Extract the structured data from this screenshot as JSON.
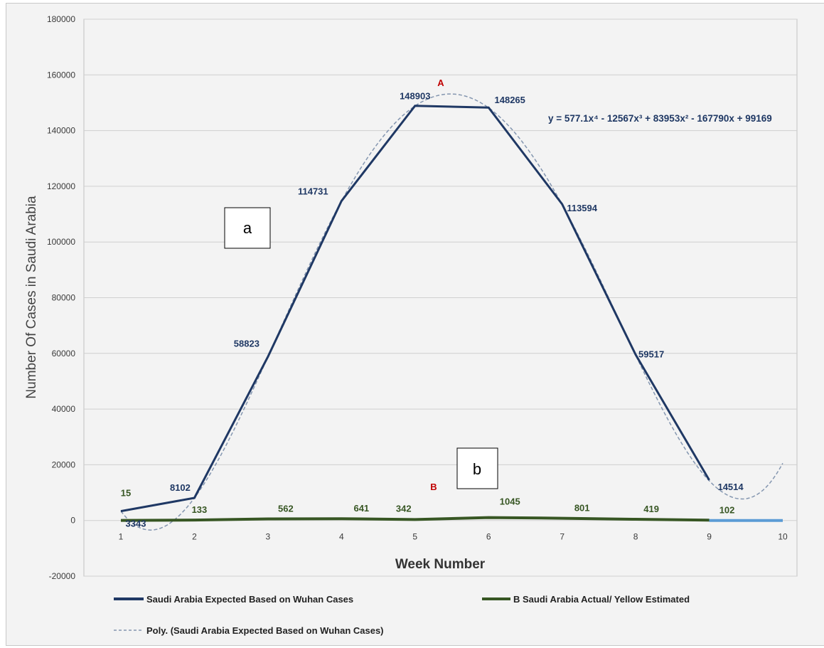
{
  "chart_data": {
    "type": "line",
    "xlabel": "Week Number",
    "ylabel": "Number Of Cases in Saudi Arabia",
    "xlim": [
      1,
      10
    ],
    "ylim": [
      -20000,
      180000
    ],
    "x_ticks": [
      "1",
      "2",
      "3",
      "4",
      "5",
      "6",
      "7",
      "8",
      "9",
      "10"
    ],
    "y_ticks": [
      "-20000",
      "0",
      "20000",
      "40000",
      "60000",
      "80000",
      "100000",
      "120000",
      "140000",
      "160000",
      "180000"
    ],
    "grid": true,
    "legend_placement": "bottom",
    "equation": "y = 577.1x⁴ - 12567x³ + 83953x² - 167790x + 99169",
    "series": [
      {
        "name": "Saudi Arabia Expected Based on Wuhan Cases",
        "color": "#1f3864",
        "x": [
          1,
          2,
          3,
          4,
          5,
          6,
          7,
          8,
          9
        ],
        "values": [
          3343,
          8102,
          58823,
          114731,
          148903,
          148265,
          113594,
          59517,
          14514
        ],
        "labels": [
          "3343",
          "8102",
          "58823",
          "114731",
          "148903",
          "148265",
          "113594",
          "59517",
          "14514"
        ]
      },
      {
        "name": "B Saudi Arabia Actual/ Yellow Estimated",
        "color": "#375623",
        "x": [
          1,
          2,
          3,
          4,
          5,
          6,
          7,
          8,
          9
        ],
        "values": [
          15,
          133,
          562,
          641,
          342,
          1045,
          801,
          419,
          102
        ],
        "labels": [
          "15",
          "133",
          "562",
          "641",
          "342",
          "1045",
          "801",
          "419",
          "102"
        ]
      },
      {
        "name": "Poly. (Saudi Arabia Expected Based on Wuhan Cases)",
        "color": "#8496b0",
        "style": "dashed",
        "coefficients": [
          577.1,
          -12567,
          83953,
          -167790,
          99169
        ],
        "x_range": [
          1,
          10
        ]
      }
    ],
    "extra_line": {
      "color": "#5b9bd5",
      "x": [
        9,
        10
      ],
      "values": [
        0,
        0
      ]
    },
    "annotations": [
      {
        "text": "A",
        "color": "#c00000"
      },
      {
        "text": "B",
        "color": "#c00000"
      },
      {
        "text": "a",
        "boxed": true
      },
      {
        "text": "b",
        "boxed": true
      }
    ]
  }
}
